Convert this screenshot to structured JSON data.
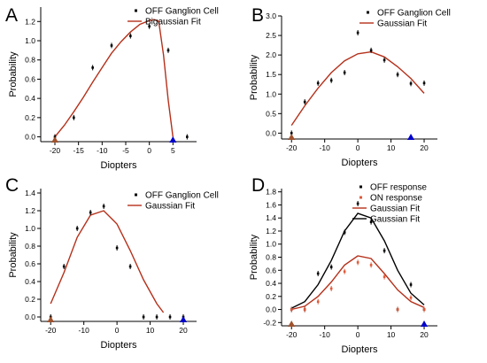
{
  "chart_data": [
    {
      "panel": "A",
      "type": "scatter",
      "xlabel": "Diopters",
      "ylabel": "Probability",
      "xlim": [
        -23,
        10
      ],
      "ylim": [
        -0.05,
        1.35
      ],
      "xticks": [
        "-20",
        "-15",
        "-10",
        "-5",
        "0",
        "5"
      ],
      "xtick_values": [
        -20,
        -15,
        -10,
        -5,
        0,
        5
      ],
      "yticks": [
        "0.0",
        "0.2",
        "0.4",
        "0.6",
        "0.8",
        "1.0",
        "1.2"
      ],
      "ytick_values": [
        0,
        0.2,
        0.4,
        0.6,
        0.8,
        1.0,
        1.2
      ],
      "series": [
        {
          "name": "OFF Ganglion Cell",
          "kind": "points",
          "color": "#000000",
          "x": [
            -20,
            -16,
            -12,
            -8,
            -4,
            0,
            4,
            8
          ],
          "y": [
            0.0,
            0.2,
            0.72,
            0.95,
            1.05,
            1.15,
            0.9,
            0.0
          ]
        },
        {
          "name": "Bigaussian Fit",
          "kind": "line",
          "color": "#b5301a",
          "x": [
            -20,
            -18,
            -16,
            -14,
            -12,
            -10,
            -8,
            -6,
            -4,
            -2,
            0,
            1,
            2,
            3,
            4,
            5
          ],
          "y": [
            0.0,
            0.12,
            0.26,
            0.41,
            0.57,
            0.72,
            0.87,
            0.99,
            1.09,
            1.17,
            1.21,
            1.22,
            1.2,
            0.85,
            0.38,
            0.0
          ]
        }
      ],
      "markers": [
        {
          "x": -20,
          "color": "#a0522d"
        },
        {
          "x": 5,
          "color": "#0000cc"
        }
      ],
      "legend_position": "top-right"
    },
    {
      "panel": "B",
      "type": "scatter",
      "xlabel": "Diopters",
      "ylabel": "Probability",
      "xlim": [
        -23,
        24
      ],
      "ylim": [
        -0.15,
        3.0
      ],
      "xticks": [
        "-20",
        "-10",
        "0",
        "10",
        "20"
      ],
      "xtick_values": [
        -20,
        -10,
        0,
        10,
        20
      ],
      "yticks": [
        "0.0",
        "0.5",
        "1.0",
        "1.5",
        "2.0",
        "2.5",
        "3.0"
      ],
      "ytick_values": [
        0,
        0.5,
        1.0,
        1.5,
        2.0,
        2.5,
        3.0
      ],
      "series": [
        {
          "name": "OFF Ganglion Cell",
          "kind": "points",
          "color": "#000000",
          "x": [
            -20,
            -16,
            -12,
            -8,
            -4,
            0,
            4,
            8,
            12,
            16,
            20
          ],
          "y": [
            0.0,
            0.8,
            1.28,
            1.35,
            1.55,
            2.57,
            2.12,
            1.87,
            1.5,
            1.27,
            1.28
          ]
        },
        {
          "name": "Gaussian Fit",
          "kind": "line",
          "color": "#b5301a",
          "x": [
            -20,
            -16,
            -12,
            -8,
            -4,
            0,
            4,
            8,
            12,
            16,
            20
          ],
          "y": [
            0.2,
            0.7,
            1.15,
            1.55,
            1.85,
            2.03,
            2.08,
            1.95,
            1.7,
            1.4,
            1.02
          ]
        }
      ],
      "markers": [
        {
          "x": -20,
          "color": "#a0522d"
        },
        {
          "x": 16,
          "color": "#0000cc"
        }
      ],
      "legend_position": "top-right"
    },
    {
      "panel": "C",
      "type": "scatter",
      "xlabel": "Diopters",
      "ylabel": "Probability",
      "xlim": [
        -23,
        24
      ],
      "ylim": [
        -0.05,
        1.45
      ],
      "xticks": [
        "-20",
        "-10",
        "0",
        "10",
        "20"
      ],
      "xtick_values": [
        -20,
        -10,
        0,
        10,
        20
      ],
      "yticks": [
        "0.0",
        "0.2",
        "0.4",
        "0.6",
        "0.8",
        "1.0",
        "1.2",
        "1.4"
      ],
      "ytick_values": [
        0,
        0.2,
        0.4,
        0.6,
        0.8,
        1.0,
        1.2,
        1.4
      ],
      "series": [
        {
          "name": "OFF Ganglion Cell",
          "kind": "points",
          "color": "#000000",
          "x": [
            -20,
            -16,
            -12,
            -8,
            -4,
            0,
            4,
            8,
            12,
            16,
            20
          ],
          "y": [
            0.0,
            0.57,
            1.0,
            1.18,
            1.25,
            0.78,
            0.57,
            0.0,
            0.0,
            0.0,
            0.0
          ]
        },
        {
          "name": "Gaussian Fit",
          "kind": "line",
          "color": "#b5301a",
          "x": [
            -20,
            -16,
            -12,
            -8,
            -4,
            0,
            4,
            8,
            12,
            14
          ],
          "y": [
            0.15,
            0.5,
            0.9,
            1.15,
            1.2,
            1.05,
            0.75,
            0.42,
            0.15,
            0.05
          ]
        }
      ],
      "markers": [
        {
          "x": -20,
          "color": "#a0522d"
        },
        {
          "x": 20,
          "color": "#0000cc"
        }
      ],
      "legend_position": "top-right"
    },
    {
      "panel": "D",
      "type": "scatter",
      "xlabel": "Diopters",
      "ylabel": "Probability",
      "xlim": [
        -23,
        24
      ],
      "ylim": [
        -0.25,
        1.85
      ],
      "xticks": [
        "-20",
        "-10",
        "0",
        "10",
        "20"
      ],
      "xtick_values": [
        -20,
        -10,
        0,
        10,
        20
      ],
      "yticks": [
        "-0.2",
        "0.0",
        "0.2",
        "0.4",
        "0.6",
        "0.8",
        "1.0",
        "1.2",
        "1.4",
        "1.6",
        "1.8"
      ],
      "ytick_values": [
        -0.2,
        0,
        0.2,
        0.4,
        0.6,
        0.8,
        1.0,
        1.2,
        1.4,
        1.6,
        1.8
      ],
      "series": [
        {
          "name": "OFF response",
          "kind": "points",
          "color": "#000000",
          "x": [
            -20,
            -16,
            -12,
            -8,
            -4,
            0,
            4,
            8,
            12,
            16,
            20
          ],
          "y": [
            0.0,
            0.0,
            0.55,
            0.65,
            1.18,
            1.62,
            1.34,
            0.9,
            0.0,
            0.38,
            0.0
          ]
        },
        {
          "name": "ON response",
          "kind": "points",
          "color": "#e05a3a",
          "x": [
            -20,
            -16,
            -12,
            -8,
            -4,
            0,
            4,
            8,
            12,
            16,
            20
          ],
          "y": [
            0.0,
            0.0,
            0.12,
            0.32,
            0.58,
            0.72,
            0.68,
            0.5,
            0.0,
            0.18,
            0.0
          ]
        },
        {
          "name": "Gaussian Fit",
          "kind": "line",
          "color": "#b5301a",
          "x": [
            -20,
            -16,
            -12,
            -8,
            -4,
            0,
            4,
            8,
            12,
            16,
            20
          ],
          "y": [
            0.0,
            0.05,
            0.2,
            0.42,
            0.68,
            0.82,
            0.78,
            0.55,
            0.3,
            0.12,
            0.03
          ]
        },
        {
          "name": "Gaussian Fit",
          "kind": "line",
          "color": "#000000",
          "x": [
            -20,
            -16,
            -12,
            -8,
            -4,
            0,
            4,
            8,
            12,
            16,
            20
          ],
          "y": [
            0.02,
            0.12,
            0.38,
            0.75,
            1.2,
            1.47,
            1.4,
            1.05,
            0.6,
            0.25,
            0.07
          ]
        }
      ],
      "markers": [
        {
          "x": -20,
          "color": "#a0522d"
        },
        {
          "x": 20,
          "color": "#0000cc"
        }
      ],
      "legend_position": "top-right"
    }
  ]
}
